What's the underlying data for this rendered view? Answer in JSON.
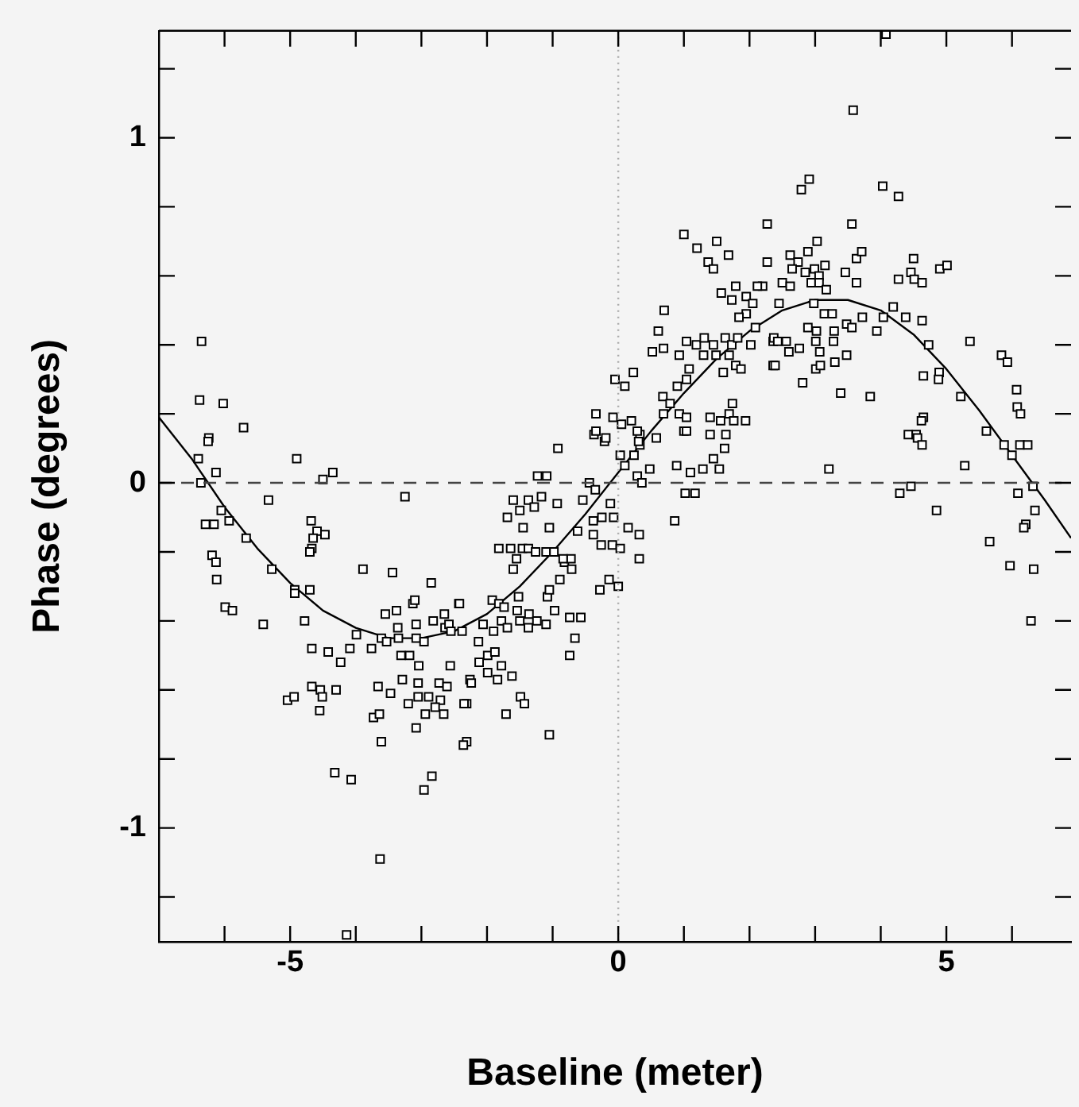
{
  "chart_data": {
    "type": "scatter",
    "xlabel": "Baseline (meter)",
    "ylabel": "Phase (degrees)",
    "xlim": [
      -7,
      6.9
    ],
    "ylim": [
      -1.33,
      1.31
    ],
    "xticks": [
      {
        "value": -6,
        "label": null
      },
      -5,
      {
        "value": -4,
        "label": null
      },
      {
        "value": -3,
        "label": null
      },
      {
        "value": -2,
        "label": null
      },
      {
        "value": -1,
        "label": null
      },
      0,
      {
        "value": 1,
        "label": null
      },
      {
        "value": 2,
        "label": null
      },
      {
        "value": 3,
        "label": null
      },
      {
        "value": 4,
        "label": null
      },
      5,
      {
        "value": 6,
        "label": null
      }
    ],
    "yticks": [
      {
        "value": -1.2,
        "label": null
      },
      -1,
      {
        "value": -0.8,
        "label": null
      },
      {
        "value": -0.6,
        "label": null
      },
      {
        "value": -0.4,
        "label": null
      },
      {
        "value": -0.2,
        "label": null
      },
      0,
      {
        "value": 0.2,
        "label": null
      },
      {
        "value": 0.4,
        "label": null
      },
      {
        "value": 0.6,
        "label": null
      },
      {
        "value": 0.8,
        "label": null
      },
      1,
      {
        "value": 1.2,
        "label": null
      }
    ],
    "grid": false,
    "legend": false,
    "marker": "square",
    "ref_lines": [
      {
        "axis": "y",
        "value": 0,
        "line_style": "dashed",
        "color": "#444444"
      },
      {
        "axis": "x",
        "value": 0,
        "line_style": "dotted",
        "color": "#aaaaaa"
      }
    ],
    "series": [
      {
        "color": "#000000",
        "x": [
          -6.35,
          -6.38,
          -6.02,
          -5.71,
          -6.24,
          -6.25,
          -6.4,
          -6.13,
          -6.36,
          -4.9,
          -4.5,
          -4.35,
          -5.33,
          -3.25,
          -6.05,
          -5.93,
          -6.29,
          -6.16,
          -5.67,
          -4.68,
          -4.59,
          -4.47,
          -4.65,
          -4.67,
          -4.7,
          -6.19,
          -6.13,
          -6.12,
          -5.28,
          -3.89,
          -3.44,
          -2.85,
          -4.93,
          -4.7,
          -4.93,
          -5.99,
          -5.88,
          -5.41,
          -4.78,
          -3.99,
          -4.67,
          -4.42,
          -4.23,
          -4.09,
          -3.76,
          -3.61,
          -3.53,
          -3.38,
          -3.13,
          -3.1,
          -3.55,
          -3.36,
          -3.35,
          -3.08,
          -3.08,
          -2.96,
          -2.82,
          -2.65,
          -2.64,
          -2.58,
          -2.55,
          -2.43,
          -3.31,
          -3.18,
          -3.04,
          -2.56,
          -4.67,
          -4.54,
          -4.51,
          -4.3,
          -5.04,
          -4.94,
          -4.55,
          -3.66,
          -3.47,
          -3.73,
          -3.64,
          -3.61,
          -3.29,
          -3.05,
          -3.2,
          -3.05,
          -2.89,
          -2.73,
          -2.61,
          -2.71,
          -2.66,
          -2.94,
          -3.08,
          -2.79,
          -2.26,
          -2.31,
          -2.31,
          -4.32,
          -4.07,
          -2.84,
          -2.96,
          -3.63,
          -4.14,
          -2.42,
          -2.38,
          -1.92,
          -1.82,
          -1.74,
          -1.54,
          -1.52,
          -2.06,
          -1.9,
          -1.78,
          -1.69,
          -1.5,
          -1.36,
          -1.37,
          -1.24,
          -1.1,
          -2.13,
          -1.99,
          -1.88,
          -2.12,
          -1.99,
          -1.84,
          -1.78,
          -1.62,
          -2.24,
          -1.49,
          -1.43,
          -2.35,
          -1.71,
          -2.36,
          -1.05,
          -0.97,
          -0.74,
          -0.57,
          -0.66,
          -0.74,
          -0.89,
          -1.08,
          -1.05,
          -0.82,
          -0.71,
          -0.72,
          -0.84,
          -1.82,
          -1.64,
          -1.55,
          -1.6,
          -1.46,
          -1.37,
          -1.26,
          -1.1,
          -0.98,
          -1.69,
          -1.45,
          -1.05,
          -1.6,
          -1.5,
          -1.37,
          -1.28,
          -1.17,
          -0.93,
          -1.23,
          -1.09,
          -0.92,
          -0.54,
          -0.44,
          -0.35,
          -0.62,
          -0.38,
          -0.38,
          -0.26,
          -0.09,
          0.03,
          -0.28,
          -0.14,
          0.0,
          -0.25,
          -0.07,
          -0.12,
          0.15,
          0.32,
          0.32,
          0.86,
          1.02,
          1.17,
          0.29,
          0.36,
          0.48,
          0.1,
          0.03,
          0.24,
          0.33,
          0.33,
          -0.37,
          -0.21,
          0.58,
          0.89,
          1.1,
          1.29,
          1.45,
          1.54,
          1.62,
          1.4,
          1.0,
          -0.05,
          0.1,
          0.23,
          -0.34,
          -0.08,
          0.05,
          0.2,
          -0.34,
          -0.19,
          0.29,
          0.31,
          0.68,
          0.79,
          0.69,
          0.9,
          0.93,
          1.04,
          1.4,
          1.56,
          1.69,
          1.74,
          1.94,
          1.76,
          1.04,
          1.64,
          1.04,
          1.08,
          1.6,
          0.52,
          0.69,
          0.61,
          0.7,
          0.93,
          1.04,
          1.19,
          1.31,
          1.3,
          1.45,
          1.49,
          1.63,
          1.73,
          1.69,
          1.79,
          1.87,
          1.82,
          2.02,
          1.57,
          1.73,
          1.79,
          1.95,
          2.05,
          1.95,
          1.84,
          2.09,
          2.2,
          1.37,
          1.45,
          1.68,
          2.27,
          2.36,
          2.36,
          1.0,
          1.2,
          1.5,
          4.08,
          3.58,
          2.91,
          2.79,
          4.03,
          4.27,
          2.27,
          3.56,
          3.03,
          2.62,
          2.74,
          2.89,
          2.65,
          2.85,
          2.99,
          3.15,
          3.06,
          3.63,
          3.71,
          3.46,
          3.63,
          4.5,
          4.46,
          4.51,
          4.63,
          4.27,
          4.9,
          5.01,
          2.12,
          2.5,
          2.62,
          2.94,
          3.06,
          3.17,
          2.45,
          2.98,
          3.14,
          3.26,
          3.72,
          4.19,
          4.38,
          4.63,
          2.89,
          3.02,
          3.29,
          3.48,
          3.56,
          4.04,
          2.37,
          2.43,
          2.56,
          2.6,
          2.76,
          3.01,
          3.07,
          3.28,
          2.39,
          3.01,
          3.08,
          3.3,
          3.48,
          2.81,
          3.39,
          3.84,
          3.94,
          4.73,
          5.36,
          5.84,
          5.93,
          4.65,
          4.89,
          4.88,
          5.22,
          6.07,
          6.08,
          6.13,
          4.65,
          4.62,
          4.42,
          4.54,
          4.56,
          4.63,
          5.61,
          5.88,
          6.0,
          6.12,
          6.24,
          5.28,
          3.21,
          4.46,
          4.29,
          6.32,
          6.09,
          4.85,
          6.35,
          6.21,
          6.18,
          5.66,
          5.97,
          6.33,
          6.29
        ],
        "values": [
          0.41,
          0.24,
          0.23,
          0.16,
          0.13,
          0.12,
          0.07,
          0.03,
          0.0,
          0.07,
          0.01,
          0.03,
          -0.05,
          -0.04,
          -0.08,
          -0.11,
          -0.12,
          -0.12,
          -0.16,
          -0.11,
          -0.14,
          -0.15,
          -0.16,
          -0.19,
          -0.2,
          -0.21,
          -0.23,
          -0.28,
          -0.25,
          -0.25,
          -0.26,
          -0.29,
          -0.31,
          -0.31,
          -0.32,
          -0.36,
          -0.37,
          -0.41,
          -0.4,
          -0.44,
          -0.48,
          -0.49,
          -0.52,
          -0.48,
          -0.48,
          -0.45,
          -0.46,
          -0.37,
          -0.35,
          -0.34,
          -0.38,
          -0.42,
          -0.45,
          -0.41,
          -0.45,
          -0.46,
          -0.4,
          -0.38,
          -0.42,
          -0.41,
          -0.43,
          -0.35,
          -0.5,
          -0.5,
          -0.53,
          -0.53,
          -0.59,
          -0.6,
          -0.62,
          -0.6,
          -0.63,
          -0.62,
          -0.66,
          -0.59,
          -0.61,
          -0.68,
          -0.67,
          -0.75,
          -0.57,
          -0.58,
          -0.64,
          -0.62,
          -0.62,
          -0.58,
          -0.59,
          -0.63,
          -0.67,
          -0.67,
          -0.71,
          -0.65,
          -0.57,
          -0.64,
          -0.75,
          -0.84,
          -0.86,
          -0.85,
          -0.89,
          -1.09,
          -1.31,
          -0.35,
          -0.43,
          -0.34,
          -0.35,
          -0.36,
          -0.37,
          -0.33,
          -0.41,
          -0.43,
          -0.4,
          -0.42,
          -0.4,
          -0.38,
          -0.42,
          -0.4,
          -0.41,
          -0.46,
          -0.5,
          -0.49,
          -0.52,
          -0.55,
          -0.57,
          -0.53,
          -0.56,
          -0.58,
          -0.62,
          -0.64,
          -0.64,
          -0.67,
          -0.76,
          -0.73,
          -0.37,
          -0.39,
          -0.39,
          -0.45,
          -0.5,
          -0.28,
          -0.33,
          -0.31,
          -0.23,
          -0.25,
          -0.22,
          -0.22,
          -0.19,
          -0.19,
          -0.22,
          -0.25,
          -0.19,
          -0.19,
          -0.2,
          -0.2,
          -0.2,
          -0.1,
          -0.13,
          -0.13,
          -0.05,
          -0.08,
          -0.05,
          -0.07,
          -0.04,
          -0.06,
          0.02,
          0.02,
          0.1,
          -0.05,
          0.0,
          -0.02,
          -0.14,
          -0.15,
          -0.11,
          -0.18,
          -0.18,
          -0.19,
          -0.31,
          -0.28,
          -0.3,
          -0.1,
          -0.1,
          -0.06,
          -0.13,
          -0.15,
          -0.22,
          -0.11,
          -0.03,
          -0.03,
          0.02,
          0.0,
          0.04,
          0.05,
          0.08,
          0.08,
          0.14,
          0.11,
          0.14,
          0.12,
          0.13,
          0.05,
          0.03,
          0.04,
          0.07,
          0.04,
          0.1,
          0.14,
          0.15,
          0.3,
          0.28,
          0.32,
          0.2,
          0.19,
          0.17,
          0.18,
          0.15,
          0.13,
          0.15,
          0.12,
          0.25,
          0.23,
          0.2,
          0.28,
          0.2,
          0.19,
          0.19,
          0.18,
          0.2,
          0.23,
          0.18,
          0.18,
          0.15,
          0.14,
          0.3,
          0.33,
          0.32,
          0.38,
          0.39,
          0.44,
          0.5,
          0.37,
          0.41,
          0.4,
          0.42,
          0.37,
          0.4,
          0.37,
          0.42,
          0.4,
          0.37,
          0.34,
          0.33,
          0.42,
          0.4,
          0.55,
          0.53,
          0.57,
          0.54,
          0.52,
          0.49,
          0.48,
          0.45,
          0.57,
          0.64,
          0.62,
          0.66,
          0.64,
          0.41,
          0.34,
          0.72,
          0.68,
          0.7,
          1.3,
          1.08,
          0.88,
          0.85,
          0.86,
          0.83,
          0.75,
          0.75,
          0.7,
          0.66,
          0.64,
          0.67,
          0.62,
          0.61,
          0.62,
          0.63,
          0.6,
          0.65,
          0.67,
          0.61,
          0.58,
          0.65,
          0.61,
          0.59,
          0.58,
          0.59,
          0.62,
          0.63,
          0.57,
          0.58,
          0.57,
          0.58,
          0.58,
          0.56,
          0.52,
          0.52,
          0.49,
          0.49,
          0.48,
          0.51,
          0.48,
          0.47,
          0.45,
          0.44,
          0.44,
          0.46,
          0.45,
          0.48,
          0.42,
          0.41,
          0.41,
          0.38,
          0.39,
          0.41,
          0.38,
          0.41,
          0.34,
          0.33,
          0.34,
          0.35,
          0.37,
          0.29,
          0.26,
          0.25,
          0.44,
          0.4,
          0.41,
          0.37,
          0.35,
          0.31,
          0.32,
          0.3,
          0.25,
          0.27,
          0.22,
          0.2,
          0.19,
          0.18,
          0.14,
          0.14,
          0.13,
          0.11,
          0.15,
          0.11,
          0.08,
          0.11,
          0.11,
          0.05,
          0.04,
          -0.01,
          -0.03,
          -0.01,
          -0.03,
          -0.08,
          -0.08,
          -0.12,
          -0.13,
          -0.17,
          -0.24,
          -0.25,
          -0.4
        ]
      },
      {
        "type": "line",
        "color": "#000000",
        "marker": "none",
        "x": [
          -7,
          -6.5,
          -6,
          -5.5,
          -5,
          -4.5,
          -4,
          -3.5,
          -3,
          -2.5,
          -2,
          -1.5,
          -1,
          -0.5,
          0,
          0.5,
          1,
          1.5,
          2,
          2.5,
          3,
          3.5,
          4,
          4.5,
          5,
          5.5,
          6,
          6.5,
          6.9
        ],
        "values": [
          0.19,
          0.07,
          -0.07,
          -0.19,
          -0.29,
          -0.37,
          -0.42,
          -0.45,
          -0.45,
          -0.43,
          -0.38,
          -0.3,
          -0.2,
          -0.09,
          0.03,
          0.15,
          0.26,
          0.36,
          0.44,
          0.5,
          0.53,
          0.53,
          0.5,
          0.43,
          0.33,
          0.21,
          0.08,
          -0.05,
          -0.16
        ]
      }
    ]
  }
}
